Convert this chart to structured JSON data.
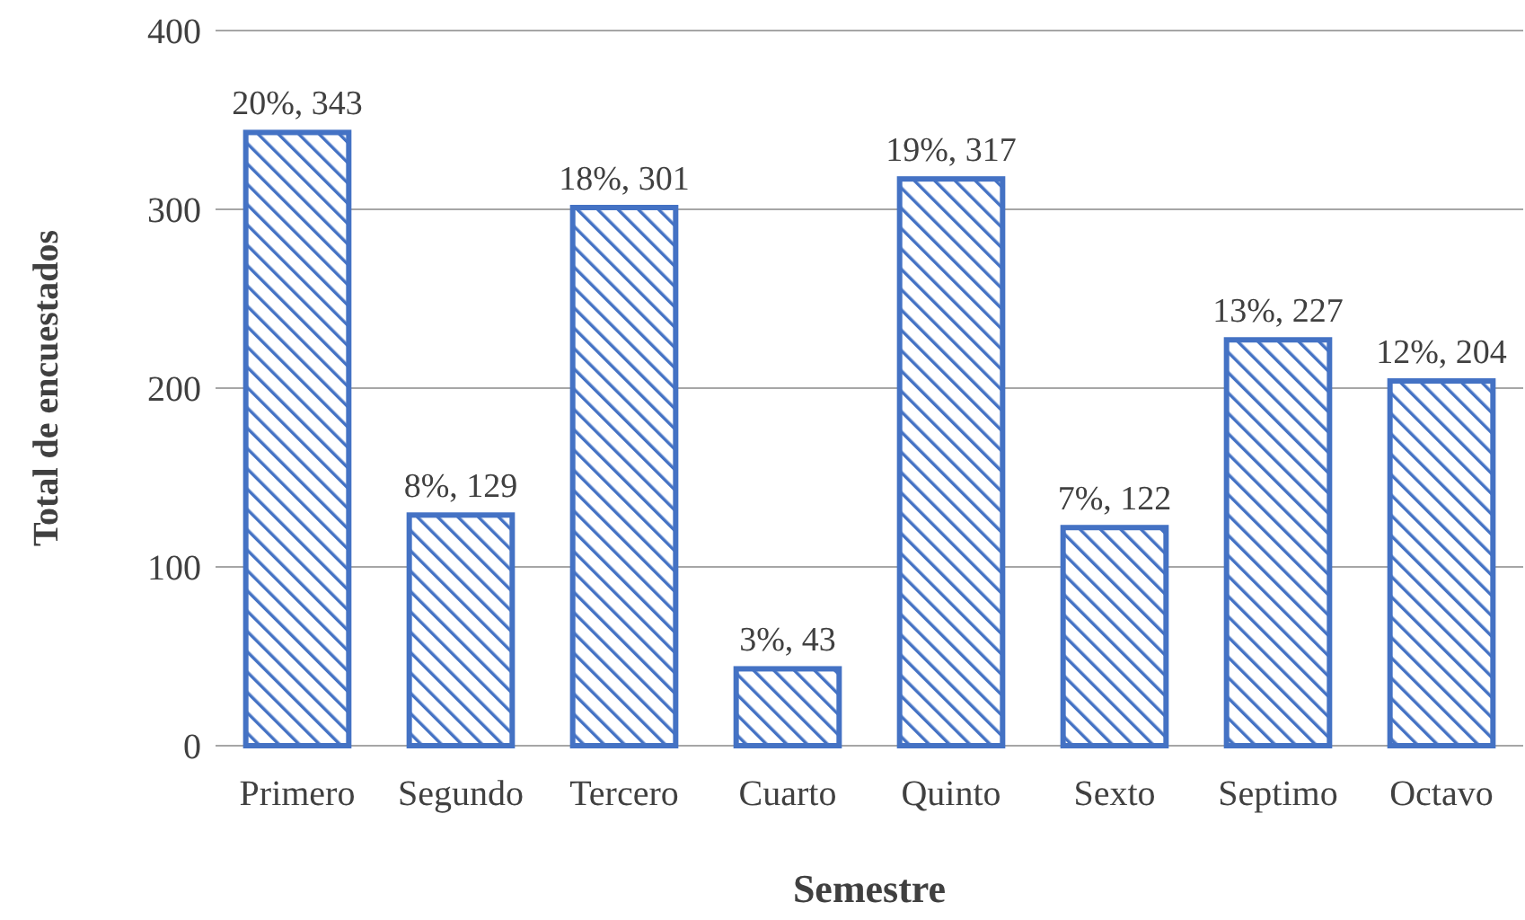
{
  "chart_data": {
    "type": "bar",
    "xlabel": "Semestre",
    "ylabel": "Total de encuestados",
    "categories": [
      "Primero",
      "Segundo",
      "Tercero",
      "Cuarto",
      "Quinto",
      "Sexto",
      "Septimo",
      "Octavo"
    ],
    "values": [
      343,
      129,
      301,
      43,
      317,
      122,
      227,
      204
    ],
    "value_labels": [
      "20%, 343",
      "8%, 129",
      "18%, 301",
      "3%, 43",
      "19%, 317",
      "7%, 122",
      "13%, 227",
      "12%, 204"
    ],
    "color": "#4472c4",
    "ylim": [
      0,
      400
    ],
    "yticks": [
      0,
      100,
      200,
      300,
      400
    ],
    "grid": "y"
  }
}
